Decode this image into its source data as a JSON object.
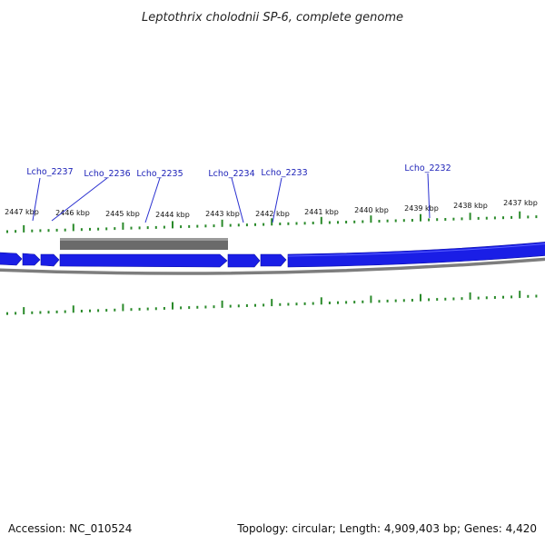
{
  "header": {
    "title": "Leptothrix cholodnii SP-6, complete genome"
  },
  "footer": {
    "accession": "Accession: NC_010524",
    "summary": "Topology: circular; Length: 4,909,403 bp; Genes: 4,420"
  },
  "scale": {
    "kbp_labels": [
      "2447 kbp",
      "2446 kbp",
      "2445 kbp",
      "2444 kbp",
      "2443 kbp",
      "2442 kbp",
      "2441 kbp",
      "2440 kbp",
      "2439 kbp",
      "2438 kbp",
      "2437 kbp"
    ]
  },
  "genes": [
    {
      "label": "Lcho_2237"
    },
    {
      "label": "Lcho_2236"
    },
    {
      "label": "Lcho_2235"
    },
    {
      "label": "Lcho_2234"
    },
    {
      "label": "Lcho_2233"
    },
    {
      "label": "Lcho_2232"
    }
  ],
  "colors": {
    "gene_fill": "#1a1ee6",
    "backbone": "#808080",
    "feature_bar": "#6a6a6a",
    "tick": "#2a8a2a",
    "label": "#1d22b8"
  }
}
